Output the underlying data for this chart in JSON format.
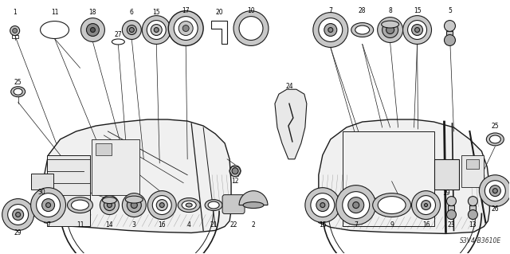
{
  "bg_color": "#f5f5f5",
  "line_color": "#2a2a2a",
  "diagram_code": "S3V4-B3610E",
  "fig_width": 6.4,
  "fig_height": 3.19,
  "dpi": 100
}
